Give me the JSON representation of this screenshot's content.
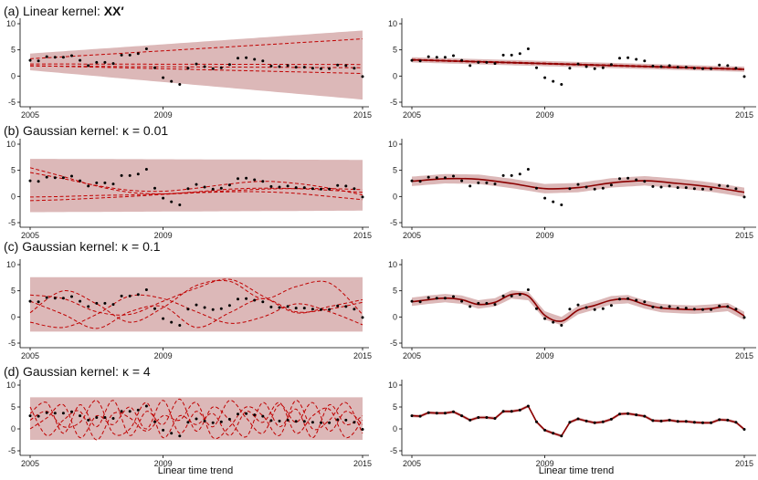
{
  "colors": {
    "band": "#dcb8b8",
    "line": "#c00000",
    "mean": "#8b0000",
    "points": "#000000",
    "axis": "#000000"
  },
  "chart_data": [
    {
      "type": "line",
      "panel": "(a)",
      "side": "prior",
      "title": "(a) Linear kernel: ",
      "title_bold": "XX′",
      "xlim": [
        2005,
        2015
      ],
      "ylim": [
        -5,
        10
      ],
      "xticks": [
        "2005",
        "2009",
        "2015"
      ],
      "yticks": [
        "-5",
        "0",
        "5",
        "10"
      ],
      "band": {
        "x": [
          2005,
          2015
        ],
        "lower": [
          1.1,
          -4.5
        ],
        "upper": [
          4.3,
          8.7
        ]
      },
      "series": [
        {
          "x": [
            2005,
            2015
          ],
          "values": [
            3.3,
            7.1
          ]
        },
        {
          "x": [
            2005,
            2015
          ],
          "values": [
            2.3,
            2.2
          ]
        },
        {
          "x": [
            2005,
            2015
          ],
          "values": [
            2.0,
            0.5
          ]
        },
        {
          "x": [
            2005,
            2015
          ],
          "values": [
            1.9,
            1.6
          ]
        }
      ]
    },
    {
      "type": "line",
      "panel": "(a)",
      "side": "posterior",
      "xlim": [
        2005,
        2015
      ],
      "ylim": [
        -5,
        10
      ],
      "xticks": [
        "2005",
        "2009",
        "2015"
      ],
      "yticks": [
        "-5",
        "0",
        "5",
        "10"
      ],
      "band": {
        "x": [
          2005,
          2015
        ],
        "lower": [
          2.6,
          0.8
        ],
        "upper": [
          3.6,
          1.8
        ]
      },
      "mean": {
        "x": [
          2005,
          2015
        ],
        "values": [
          3.1,
          1.3
        ]
      },
      "series": [
        {
          "x": [
            2005,
            2015
          ],
          "values": [
            3.0,
            1.2
          ]
        },
        {
          "x": [
            2005,
            2015
          ],
          "values": [
            3.2,
            1.4
          ]
        }
      ]
    },
    {
      "type": "line",
      "panel": "(b)",
      "side": "prior",
      "title": "(b) Gaussian kernel: κ = 0.01",
      "xlim": [
        2005,
        2015
      ],
      "ylim": [
        -5,
        10
      ],
      "xticks": [
        "2005",
        "2009",
        "2015"
      ],
      "yticks": [
        "-5",
        "0",
        "5",
        "10"
      ],
      "band": {
        "x": [
          2005,
          2015
        ],
        "lower": [
          -3.0,
          -2.7
        ],
        "upper": [
          7.2,
          7.0
        ]
      },
      "series": [
        {
          "x": [
            2005,
            2006,
            2007,
            2008,
            2009,
            2010,
            2011,
            2012,
            2013,
            2014,
            2015
          ],
          "values": [
            5.5,
            3.8,
            2.0,
            0.8,
            0.5,
            0.9,
            1.4,
            1.6,
            1.5,
            1.2,
            0.8
          ]
        },
        {
          "x": [
            2005,
            2006,
            2007,
            2008,
            2009,
            2010,
            2011,
            2012,
            2013,
            2014,
            2015
          ],
          "values": [
            4.6,
            3.4,
            2.1,
            1.2,
            1.0,
            1.6,
            2.4,
            2.9,
            2.5,
            1.6,
            0.3
          ]
        },
        {
          "x": [
            2005,
            2006,
            2007,
            2008,
            2009,
            2010,
            2011,
            2012,
            2013,
            2014,
            2015
          ],
          "values": [
            -0.1,
            0.0,
            0.2,
            0.3,
            0.5,
            0.8,
            1.1,
            1.4,
            1.5,
            1.5,
            1.3
          ]
        },
        {
          "x": [
            2005,
            2006,
            2007,
            2008,
            2009,
            2010,
            2011,
            2012,
            2013,
            2014,
            2015
          ],
          "values": [
            -0.8,
            -0.6,
            -0.3,
            0.0,
            0.4,
            0.7,
            0.9,
            0.9,
            0.6,
            0.0,
            -0.6
          ]
        }
      ]
    },
    {
      "type": "line",
      "panel": "(b)",
      "side": "posterior",
      "xlim": [
        2005,
        2015
      ],
      "ylim": [
        -5,
        10
      ],
      "xticks": [
        "2005",
        "2009",
        "2015"
      ],
      "yticks": [
        "-5",
        "0",
        "5",
        "10"
      ],
      "band_width": 0.9,
      "mean": {
        "x": [
          2005,
          2006,
          2007,
          2008,
          2009,
          2010,
          2011,
          2012,
          2013,
          2014,
          2015
        ],
        "values": [
          2.9,
          3.4,
          3.3,
          2.5,
          1.5,
          1.7,
          2.6,
          3.0,
          2.5,
          1.8,
          0.8
        ]
      }
    },
    {
      "type": "line",
      "panel": "(c)",
      "side": "prior",
      "title": "(c) Gaussian kernel: κ = 0.1",
      "xlim": [
        2005,
        2015
      ],
      "ylim": [
        -5,
        10
      ],
      "xticks": [
        "2005",
        "2009",
        "2015"
      ],
      "yticks": [
        "-5",
        "0",
        "5",
        "10"
      ],
      "band": {
        "x": [
          2005,
          2015
        ],
        "lower": [
          -2.8,
          -2.8
        ],
        "upper": [
          7.6,
          7.6
        ]
      },
      "series": [
        {
          "x": [
            2005,
            2006,
            2007,
            2008,
            2009,
            2010,
            2011,
            2012,
            2013,
            2014,
            2015
          ],
          "values": [
            4.2,
            3.5,
            1.0,
            0.5,
            3.0,
            5.5,
            7.2,
            4.0,
            0.8,
            2.0,
            3.3
          ]
        },
        {
          "x": [
            2005,
            2006,
            2007,
            2008,
            2009,
            2010,
            2011,
            2012,
            2013,
            2014,
            2015
          ],
          "values": [
            0.8,
            5.0,
            2.5,
            -1.0,
            1.8,
            6.0,
            6.8,
            3.5,
            5.8,
            6.5,
            0.5
          ]
        },
        {
          "x": [
            2005,
            2006,
            2007,
            2008,
            2009,
            2010,
            2011,
            2012,
            2013,
            2014,
            2015
          ],
          "values": [
            3.0,
            0.5,
            -2.2,
            1.0,
            2.0,
            -2.0,
            0.8,
            3.5,
            1.0,
            1.5,
            2.8
          ]
        },
        {
          "x": [
            2005,
            2006,
            2007,
            2008,
            2009,
            2010,
            2011,
            2012,
            2013,
            2014,
            2015
          ],
          "values": [
            -1.0,
            -2.0,
            0.5,
            4.0,
            3.5,
            1.0,
            -1.2,
            0.0,
            2.5,
            1.0,
            -1.5
          ]
        }
      ]
    },
    {
      "type": "line",
      "panel": "(c)",
      "side": "posterior",
      "xlim": [
        2005,
        2015
      ],
      "ylim": [
        -5,
        10
      ],
      "xticks": [
        "2005",
        "2009",
        "2015"
      ],
      "yticks": [
        "-5",
        "0",
        "5",
        "10"
      ],
      "band_width": 0.8,
      "mean": {
        "x": [
          2005,
          2005.5,
          2006,
          2006.5,
          2007,
          2007.5,
          2008,
          2008.5,
          2009,
          2009.5,
          2010,
          2010.5,
          2011,
          2011.5,
          2012,
          2012.5,
          2013,
          2013.5,
          2014,
          2014.5,
          2015
        ],
        "values": [
          2.9,
          3.3,
          3.6,
          3.3,
          2.4,
          2.8,
          4.3,
          4.0,
          0.3,
          -0.8,
          1.3,
          2.2,
          3.2,
          3.4,
          2.4,
          1.7,
          1.5,
          1.4,
          1.6,
          1.9,
          0.2
        ]
      }
    },
    {
      "type": "line",
      "panel": "(d)",
      "side": "prior",
      "title": "(d) Gaussian kernel: κ = 4",
      "xlim": [
        2005,
        2015
      ],
      "ylim": [
        -5,
        10
      ],
      "xticks": [
        "2005",
        "2009",
        "2015"
      ],
      "yticks": [
        "-5",
        "0",
        "5",
        "10"
      ],
      "xlabel": "Linear time trend",
      "band": {
        "x": [
          2005,
          2015
        ],
        "lower": [
          -2.5,
          -2.5
        ],
        "upper": [
          7.2,
          7.2
        ]
      },
      "series": [
        {
          "x": [
            2005,
            2005.5,
            2006,
            2006.5,
            2007,
            2007.5,
            2008,
            2008.5,
            2009,
            2009.5,
            2010,
            2010.5,
            2011,
            2011.5,
            2012,
            2012.5,
            2013,
            2013.5,
            2014,
            2014.5,
            2015
          ],
          "values": [
            3.5,
            6.0,
            -1.0,
            5.5,
            0.5,
            6.5,
            -1.5,
            4.0,
            1.0,
            6.8,
            -0.5,
            5.0,
            2.0,
            -1.8,
            6.0,
            0.5,
            4.5,
            -2.0,
            5.5,
            1.0,
            3.0
          ]
        },
        {
          "x": [
            2005,
            2005.5,
            2006,
            2006.5,
            2007,
            2007.5,
            2008,
            2008.5,
            2009,
            2009.5,
            2010,
            2010.5,
            2011,
            2011.5,
            2012,
            2012.5,
            2013,
            2013.5,
            2014,
            2014.5,
            2015
          ],
          "values": [
            0.0,
            2.5,
            5.5,
            -2.0,
            3.0,
            1.0,
            5.0,
            0.0,
            6.5,
            -1.0,
            4.0,
            0.5,
            6.5,
            2.5,
            -1.0,
            5.5,
            1.5,
            6.0,
            -0.5,
            4.0,
            1.0
          ]
        },
        {
          "x": [
            2005,
            2005.5,
            2006,
            2006.5,
            2007,
            2007.5,
            2008,
            2008.5,
            2009,
            2009.5,
            2010,
            2010.5,
            2011,
            2011.5,
            2012,
            2012.5,
            2013,
            2013.5,
            2014,
            2014.5,
            2015
          ],
          "values": [
            5.0,
            -1.5,
            2.0,
            4.0,
            -2.5,
            3.5,
            2.5,
            -0.5,
            3.0,
            2.0,
            6.0,
            -2.0,
            0.5,
            5.0,
            3.0,
            -1.5,
            6.5,
            0.0,
            2.0,
            6.0,
            -1.0
          ]
        },
        {
          "x": [
            2005,
            2005.5,
            2006,
            2006.5,
            2007,
            2007.5,
            2008,
            2008.5,
            2009,
            2009.5,
            2010,
            2010.5,
            2011,
            2011.5,
            2012,
            2012.5,
            2013,
            2013.5,
            2014,
            2014.5,
            2015
          ],
          "values": [
            2.0,
            4.0,
            0.5,
            1.5,
            6.5,
            -1.0,
            0.0,
            6.0,
            -2.0,
            3.0,
            1.0,
            3.5,
            -1.5,
            4.0,
            1.5,
            6.0,
            -1.0,
            3.0,
            4.5,
            -2.0,
            2.0
          ]
        }
      ]
    },
    {
      "type": "line",
      "panel": "(d)",
      "side": "posterior",
      "xlim": [
        2005,
        2015
      ],
      "ylim": [
        -5,
        10
      ],
      "xticks": [
        "2005",
        "2009",
        "2015"
      ],
      "yticks": [
        "-5",
        "0",
        "5",
        "10"
      ],
      "xlabel": "Linear time trend",
      "band_width": 0.35,
      "mean": "observed"
    }
  ],
  "observed": {
    "x": [
      2005,
      2005.25,
      2005.5,
      2005.75,
      2006,
      2006.25,
      2006.5,
      2006.75,
      2007,
      2007.25,
      2007.5,
      2007.75,
      2008,
      2008.25,
      2008.5,
      2008.75,
      2009,
      2009.25,
      2009.5,
      2009.75,
      2010,
      2010.25,
      2010.5,
      2010.75,
      2011,
      2011.25,
      2011.5,
      2011.75,
      2012,
      2012.25,
      2012.5,
      2012.75,
      2013,
      2013.25,
      2013.5,
      2013.75,
      2014,
      2014.25,
      2014.5,
      2014.75,
      2015
    ],
    "values": [
      3.0,
      2.9,
      3.7,
      3.6,
      3.6,
      3.9,
      3.0,
      2.0,
      2.6,
      2.6,
      2.4,
      4.0,
      4.0,
      4.3,
      5.2,
      1.6,
      -0.3,
      -1.0,
      -1.6,
      1.5,
      2.3,
      1.8,
      1.4,
      1.6,
      2.2,
      3.4,
      3.5,
      3.2,
      2.9,
      1.9,
      1.8,
      2.0,
      1.7,
      1.7,
      1.5,
      1.4,
      1.4,
      2.1,
      2.0,
      1.5,
      -0.1
    ]
  }
}
